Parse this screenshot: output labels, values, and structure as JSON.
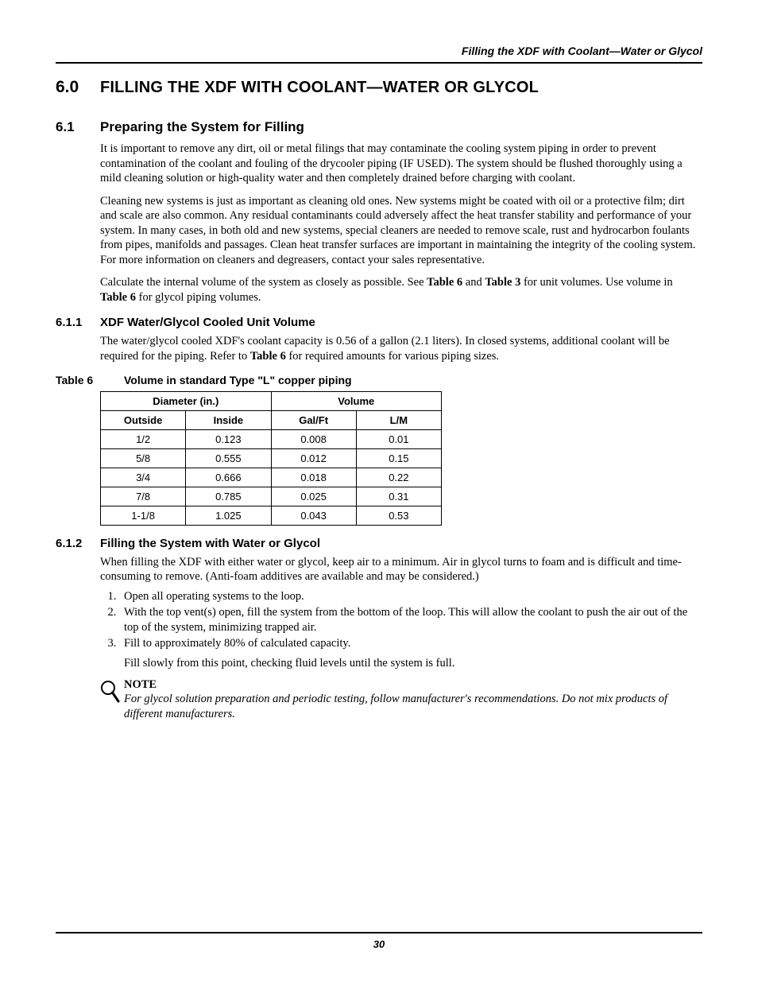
{
  "running_head": "Filling the XDF with Coolant—Water or Glycol",
  "h1": {
    "num": "6.0",
    "text": "FILLING THE XDF WITH COOLANT—WATER OR GLYCOL"
  },
  "h2_1": {
    "num": "6.1",
    "text": "Preparing the System for Filling"
  },
  "para_6_1_a": "It is important to remove any dirt, oil or metal filings that may contaminate the cooling system piping in order to prevent contamination of the coolant and fouling of the drycooler piping (IF USED). The system should be flushed thoroughly using a mild cleaning solution or high-quality water and then completely drained before charging with coolant.",
  "para_6_1_b": "Cleaning new systems is just as important as cleaning old ones. New systems might be coated with oil or a protective film; dirt and scale are also common. Any residual contaminants could adversely affect the heat transfer stability and performance of your system. In many cases, in both old and new systems, special cleaners are needed to remove scale, rust and hydrocarbon foulants from pipes, manifolds and passages. Clean heat transfer surfaces are important in maintaining the integrity of the cooling system. For more information on cleaners and degreasers, contact your sales representative.",
  "para_6_1_c_pre": "Calculate the internal volume of the system as closely as possible. See ",
  "para_6_1_c_b1": "Table 6",
  "para_6_1_c_mid": " and ",
  "para_6_1_c_b2": "Table 3",
  "para_6_1_c_mid2": " for unit volumes. Use volume in ",
  "para_6_1_c_b3": "Table 6",
  "para_6_1_c_end": " for glycol piping volumes.",
  "h3_1": {
    "num": "6.1.1",
    "text": "XDF Water/Glycol Cooled Unit Volume"
  },
  "para_611_pre": "The water/glycol cooled XDF's coolant capacity is 0.56 of a gallon (2.1 liters). In closed systems, additional coolant will be required for the piping. Refer to ",
  "para_611_b": "Table 6",
  "para_611_end": " for required amounts for various piping sizes.",
  "table6": {
    "label": "Table 6",
    "caption": "Volume in standard Type \"L\" copper piping",
    "group_headers": [
      "Diameter (in.)",
      "Volume"
    ],
    "columns": [
      "Outside",
      "Inside",
      "Gal/Ft",
      "L/M"
    ],
    "col_widths": [
      "25%",
      "25%",
      "25%",
      "25%"
    ],
    "rows": [
      [
        "1/2",
        "0.123",
        "0.008",
        "0.01"
      ],
      [
        "5/8",
        "0.555",
        "0.012",
        "0.15"
      ],
      [
        "3/4",
        "0.666",
        "0.018",
        "0.22"
      ],
      [
        "7/8",
        "0.785",
        "0.025",
        "0.31"
      ],
      [
        "1-1/8",
        "1.025",
        "0.043",
        "0.53"
      ]
    ]
  },
  "h3_2": {
    "num": "6.1.2",
    "text": "Filling the System with Water or Glycol"
  },
  "para_612": "When filling the XDF with either water or glycol, keep air to a minimum. Air in glycol turns to foam and is difficult and time-consuming to remove. (Anti-foam additives are available and may be considered.)",
  "steps": [
    "Open all operating systems to the loop.",
    "With the top vent(s) open, fill the system from the bottom of the loop. This will allow the coolant to push the air out of the top of the system, minimizing trapped air.",
    "Fill to approximately 80% of calculated capacity."
  ],
  "step3_cont": "Fill slowly from this point, checking fluid levels until the system is full.",
  "note_label": "NOTE",
  "note_text": "For glycol solution preparation and periodic testing, follow manufacturer's recommendations. Do not mix products of different manufacturers.",
  "page_number": "30"
}
